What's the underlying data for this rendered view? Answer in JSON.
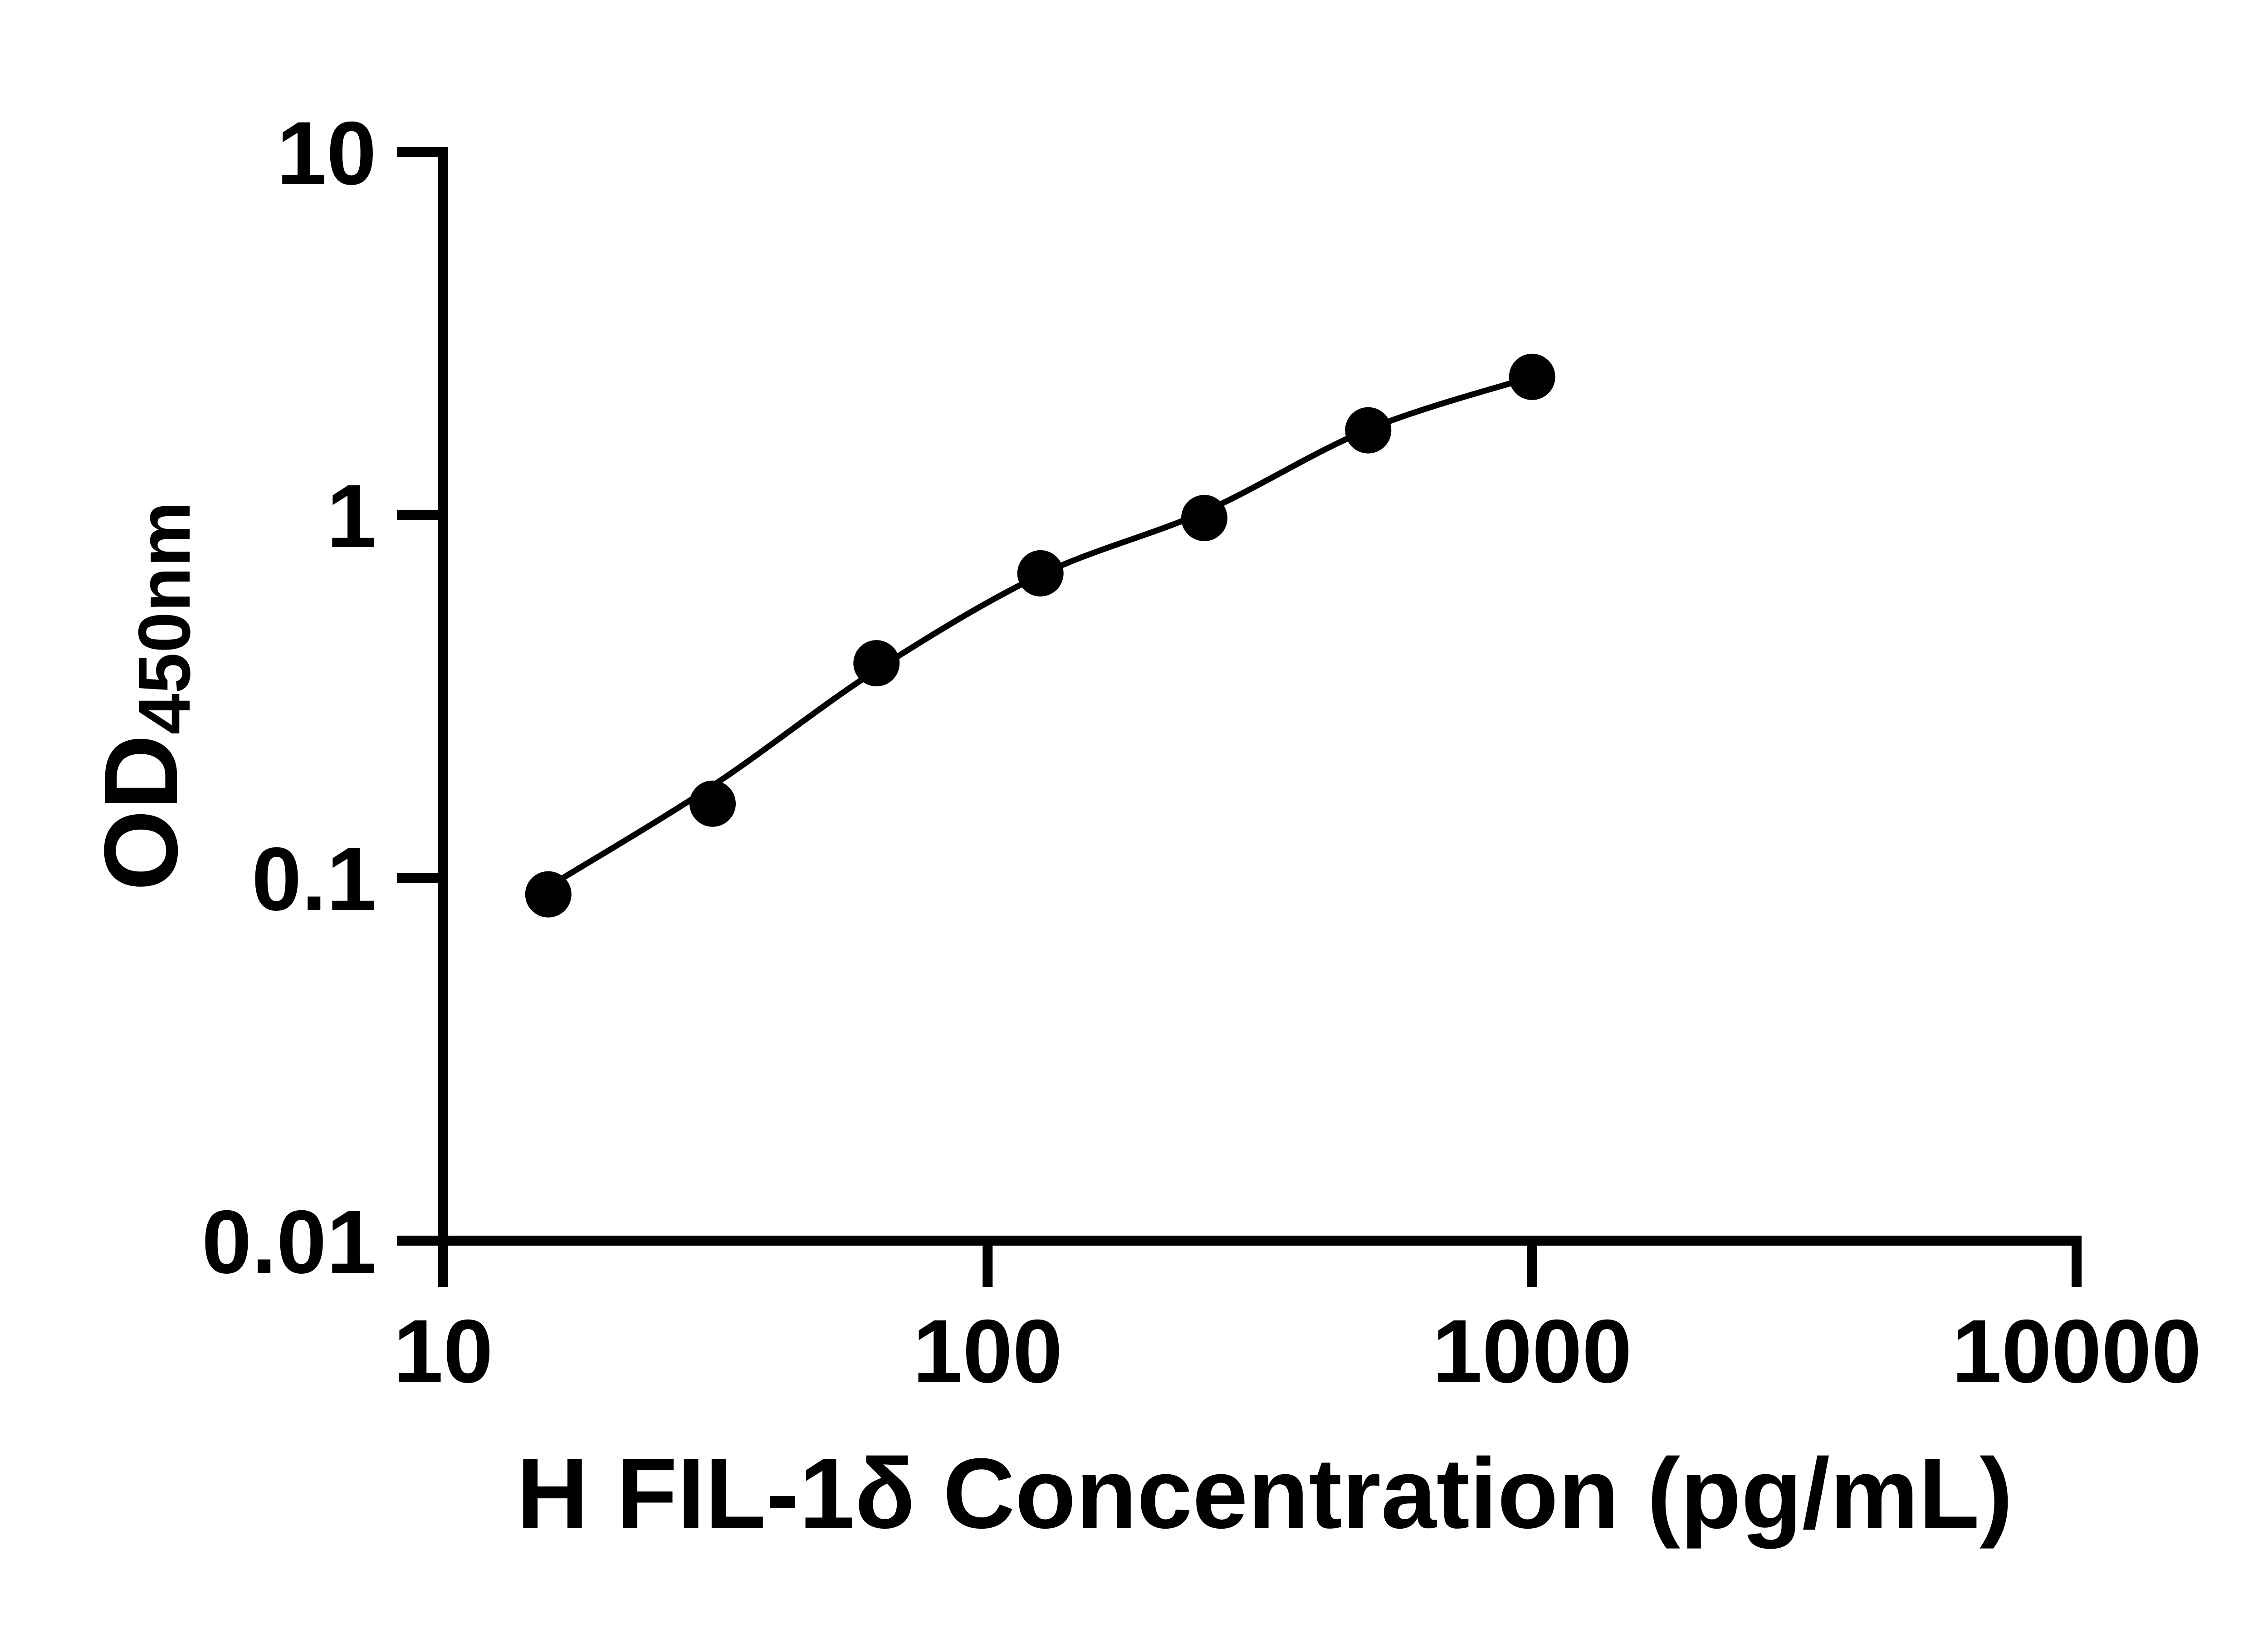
{
  "figure": {
    "background_color": "#ffffff",
    "accent_color": "#000000"
  },
  "chart_data": {
    "type": "scatter",
    "title": "",
    "xlabel": "H FIL-1δ Concentration (pg/mL)",
    "ylabel_main": "OD",
    "ylabel_sub": "450nm",
    "x_scale": "log10",
    "y_scale": "log10",
    "xlim": [
      10,
      10000
    ],
    "ylim": [
      0.01,
      10
    ],
    "grid": false,
    "legend": false,
    "x_ticks": {
      "values": [
        10,
        100,
        1000,
        10000
      ],
      "labels": [
        "10",
        "100",
        "1000",
        "10000"
      ]
    },
    "y_ticks": {
      "values": [
        10,
        1,
        0.1,
        0.01
      ],
      "labels": [
        "10",
        "1",
        "0.1",
        "0.01"
      ]
    },
    "series": [
      {
        "name": "standard-points",
        "marker": "filled-circle",
        "color": "#000000",
        "x": [
          15.6,
          31.25,
          62.5,
          125,
          250,
          500,
          1000
        ],
        "od": [
          0.09,
          0.16,
          0.39,
          0.69,
          0.98,
          1.71,
          2.4
        ]
      }
    ],
    "fit_curve": {
      "name": "fitted-standard-curve",
      "color": "#000000",
      "x": [
        15.7,
        31.2,
        62.4,
        125,
        250,
        500,
        1000
      ],
      "od": [
        0.095,
        0.179,
        0.373,
        0.683,
        1.02,
        1.72,
        2.4
      ]
    }
  }
}
